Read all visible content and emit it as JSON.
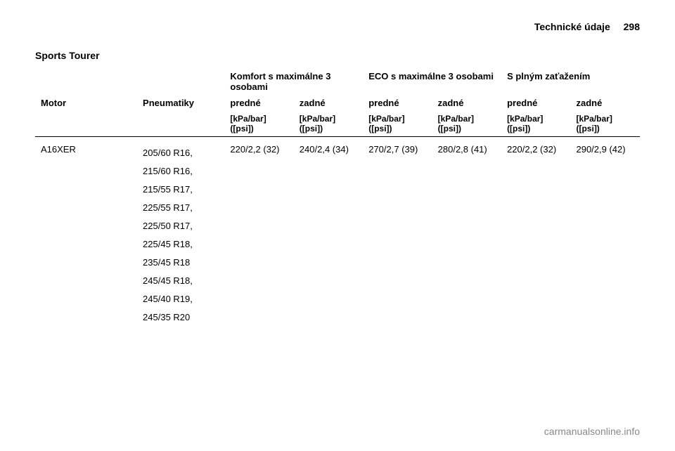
{
  "header": {
    "title": "Technické údaje",
    "page": "298"
  },
  "section_title": "Sports Tourer",
  "groups": {
    "comfort": "Komfort s maximálne 3 osobami",
    "eco": "ECO s maximálne 3 osobami",
    "full": "S plným zaťažením"
  },
  "col_headers": {
    "engine": "Motor",
    "tyres": "Pneumatiky",
    "front": "predné",
    "rear": "zadné"
  },
  "unit_lines": {
    "line1": "[kPa/bar]",
    "line2": "([psi])"
  },
  "rows": [
    {
      "engine": "A16XER",
      "tyres": [
        "205/60 R16,",
        "215/60 R16,",
        "215/55 R17,",
        "225/55 R17,",
        "225/50 R17,",
        "225/45 R18,",
        "235/45 R18",
        "245/45 R18,",
        "245/40 R19,",
        "245/35 R20"
      ],
      "values": [
        "220/2,2 (32)",
        "240/2,4 (34)",
        "270/2,7 (39)",
        "280/2,8 (41)",
        "220/2,2 (32)",
        "290/2,9 (42)"
      ]
    }
  ],
  "footer": "carmanualsonline.info"
}
